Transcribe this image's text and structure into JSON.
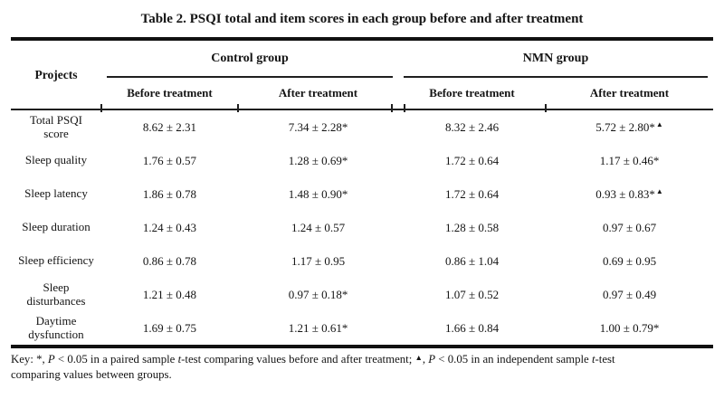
{
  "page": {
    "background_color": "#ffffff",
    "text_color": "#141414",
    "rule_color": "#111111"
  },
  "title": "Table 2. PSQI total and item scores in each group before and after treatment",
  "table": {
    "projects_header": "Projects",
    "groups": [
      {
        "label": "Control group",
        "subheaders": [
          "Before treatment",
          "After treatment"
        ]
      },
      {
        "label": "NMN group",
        "subheaders": [
          "Before treatment",
          "After treatment"
        ]
      }
    ],
    "rows": [
      {
        "project": "Total PSQI score",
        "values": [
          {
            "text": "8.62 ± 2.31",
            "flag": ""
          },
          {
            "text": "7.34 ± 2.28*",
            "flag": ""
          },
          {
            "text": "8.32 ± 2.46",
            "flag": ""
          },
          {
            "text": "5.72 ± 2.80*",
            "flag": "▲"
          }
        ]
      },
      {
        "project": "Sleep quality",
        "values": [
          {
            "text": "1.76 ± 0.57",
            "flag": ""
          },
          {
            "text": "1.28 ± 0.69*",
            "flag": ""
          },
          {
            "text": "1.72 ± 0.64",
            "flag": ""
          },
          {
            "text": "1.17 ± 0.46*",
            "flag": ""
          }
        ]
      },
      {
        "project": "Sleep latency",
        "values": [
          {
            "text": "1.86 ± 0.78",
            "flag": ""
          },
          {
            "text": "1.48 ± 0.90*",
            "flag": ""
          },
          {
            "text": "1.72 ± 0.64",
            "flag": ""
          },
          {
            "text": "0.93 ± 0.83*",
            "flag": "▲"
          }
        ]
      },
      {
        "project": "Sleep duration",
        "values": [
          {
            "text": "1.24 ± 0.43",
            "flag": ""
          },
          {
            "text": "1.24 ± 0.57",
            "flag": ""
          },
          {
            "text": "1.28 ± 0.58",
            "flag": ""
          },
          {
            "text": "0.97 ± 0.67",
            "flag": ""
          }
        ]
      },
      {
        "project": "Sleep efficiency",
        "values": [
          {
            "text": "0.86 ± 0.78",
            "flag": ""
          },
          {
            "text": "1.17 ± 0.95",
            "flag": ""
          },
          {
            "text": "0.86 ± 1.04",
            "flag": ""
          },
          {
            "text": "0.69 ± 0.95",
            "flag": ""
          }
        ]
      },
      {
        "project": "Sleep disturbances",
        "values": [
          {
            "text": "1.21 ± 0.48",
            "flag": ""
          },
          {
            "text": "0.97 ± 0.18*",
            "flag": ""
          },
          {
            "text": "1.07 ± 0.52",
            "flag": ""
          },
          {
            "text": "0.97 ± 0.49",
            "flag": ""
          }
        ]
      },
      {
        "project": "Daytime dysfunction",
        "values": [
          {
            "text": "1.69 ± 0.75",
            "flag": ""
          },
          {
            "text": "1.21 ± 0.61*",
            "flag": ""
          },
          {
            "text": "1.66 ± 0.84",
            "flag": ""
          },
          {
            "text": "1.00 ± 0.79*",
            "flag": ""
          }
        ]
      }
    ]
  },
  "footnote": {
    "segments": [
      {
        "t": "Key: *, ",
        "style": ""
      },
      {
        "t": "P",
        "style": "italic"
      },
      {
        "t": " < 0.05 in a paired sample ",
        "style": ""
      },
      {
        "t": "t",
        "style": "italic"
      },
      {
        "t": "-test comparing values before and after treatment; ",
        "style": ""
      },
      {
        "t": "▲",
        "style": "sup"
      },
      {
        "t": ", ",
        "style": ""
      },
      {
        "t": "P",
        "style": "italic"
      },
      {
        "t": " < 0.05 in an independent sample ",
        "style": ""
      },
      {
        "t": "t",
        "style": "italic"
      },
      {
        "t": "-test",
        "style": ""
      },
      {
        "t": "",
        "style": "break"
      },
      {
        "t": "comparing values between groups.",
        "style": ""
      }
    ]
  }
}
